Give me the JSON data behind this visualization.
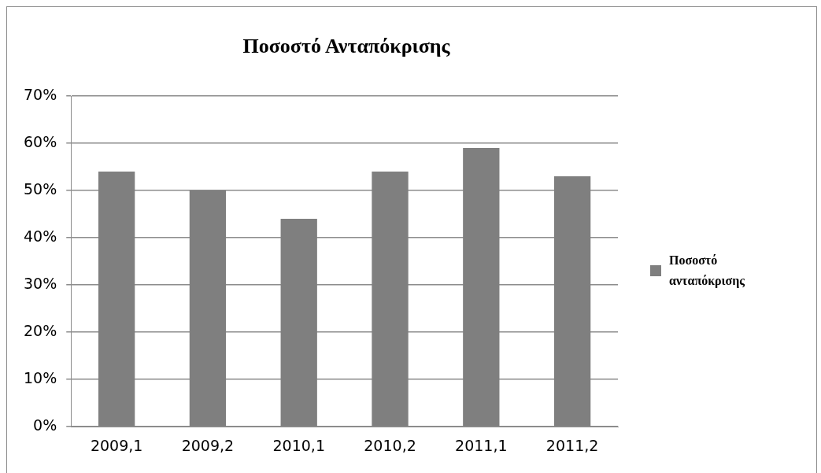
{
  "chart_data": {
    "type": "bar",
    "title": "Ποσοστό Ανταπόκρισης",
    "categories": [
      "2009,1",
      "2009,2",
      "2010,1",
      "2010,2",
      "2011,1",
      "2011,2"
    ],
    "series": [
      {
        "name": "Ποσοστό ανταπόκρισης",
        "color": "#7f7f7f",
        "values": [
          54,
          50,
          44,
          54,
          59,
          53
        ]
      }
    ],
    "ylim": [
      0,
      70
    ],
    "yticks": [
      {
        "value": 0,
        "label": "0%"
      },
      {
        "value": 10,
        "label": "10%"
      },
      {
        "value": 20,
        "label": "20%"
      },
      {
        "value": 30,
        "label": "30%"
      },
      {
        "value": 40,
        "label": "40%"
      },
      {
        "value": 50,
        "label": "50%"
      },
      {
        "value": 60,
        "label": "60%"
      },
      {
        "value": 70,
        "label": "70%"
      }
    ],
    "grid": "y",
    "legend": "right"
  }
}
